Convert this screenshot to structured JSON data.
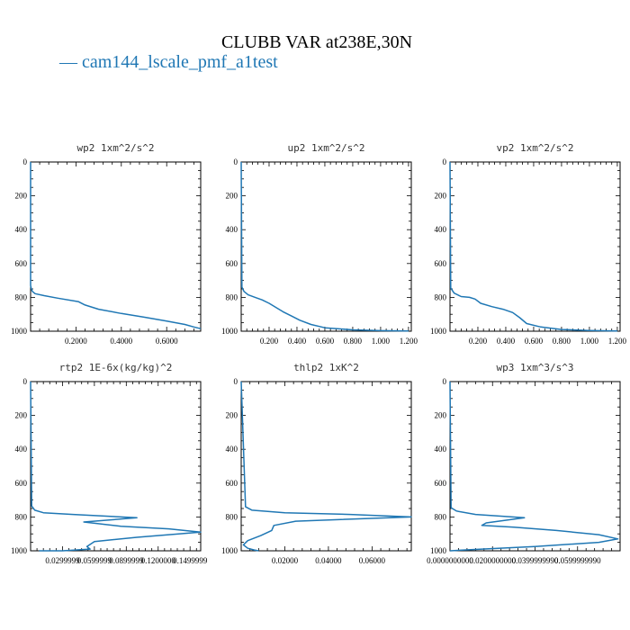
{
  "figure": {
    "title": "CLUBB VAR at238E,30N",
    "legend_label": "cam144_lscale_pmf_a1test",
    "legend_marker": "—",
    "line_color": "#1f77b4"
  },
  "chart_data": [
    {
      "type": "line",
      "title": "wp2  1xm^2/s^2",
      "xlim": [
        0,
        0.75
      ],
      "ylim": [
        1000,
        0
      ],
      "xticks": [
        0.2,
        0.4,
        0.6
      ],
      "xtick_labels": [
        "0.2000",
        "0.4000",
        "0.6000"
      ],
      "yticks": [
        0,
        200,
        400,
        600,
        800,
        1000
      ],
      "ytick_labels": [
        "0",
        "200",
        "400",
        "600",
        "800",
        "1000"
      ],
      "series": [
        {
          "name": "cam144_lscale_pmf_a1test",
          "x": [
            0,
            0,
            0.003,
            0.008,
            0.02,
            0.06,
            0.12,
            0.21,
            0.24,
            0.3,
            0.4,
            0.5,
            0.6,
            0.68,
            0.72,
            0.75
          ],
          "y": [
            0,
            730,
            750,
            765,
            778,
            790,
            805,
            825,
            845,
            870,
            895,
            917,
            940,
            960,
            975,
            985
          ]
        }
      ]
    },
    {
      "type": "line",
      "title": "up2  1xm^2/s^2",
      "xlim": [
        0,
        1.22
      ],
      "ylim": [
        1000,
        0
      ],
      "xticks": [
        0.2,
        0.4,
        0.6,
        0.8,
        1.0,
        1.2
      ],
      "xtick_labels": [
        "0.200",
        "0.400",
        "0.600",
        "0.800",
        "1.000",
        "1.200"
      ],
      "yticks": [
        0,
        200,
        400,
        600,
        800,
        1000
      ],
      "ytick_labels": [
        "0",
        "200",
        "400",
        "600",
        "800",
        "1000"
      ],
      "series": [
        {
          "name": "cam144_lscale_pmf_a1test",
          "x": [
            0,
            0.005,
            0.02,
            0.05,
            0.1,
            0.15,
            0.2,
            0.26,
            0.3,
            0.36,
            0.42,
            0.5,
            0.6,
            0.8,
            1.0,
            1.2
          ],
          "y": [
            0,
            740,
            765,
            785,
            800,
            815,
            835,
            865,
            885,
            910,
            935,
            960,
            980,
            992,
            997,
            999
          ]
        }
      ]
    },
    {
      "type": "line",
      "title": "vp2  1xm^2/s^2",
      "xlim": [
        0,
        1.22
      ],
      "ylim": [
        1000,
        0
      ],
      "xticks": [
        0.2,
        0.4,
        0.6,
        0.8,
        1.0,
        1.2
      ],
      "xtick_labels": [
        "0.200",
        "0.400",
        "0.600",
        "0.800",
        "1.000",
        "1.200"
      ],
      "yticks": [
        0,
        200,
        400,
        600,
        800,
        1000
      ],
      "ytick_labels": [
        "0",
        "200",
        "400",
        "600",
        "800",
        "1000"
      ],
      "series": [
        {
          "name": "cam144_lscale_pmf_a1test",
          "x": [
            0,
            0.005,
            0.03,
            0.08,
            0.14,
            0.18,
            0.22,
            0.3,
            0.38,
            0.45,
            0.5,
            0.55,
            0.65,
            0.8,
            1.0,
            1.2
          ],
          "y": [
            0,
            745,
            775,
            795,
            800,
            810,
            835,
            855,
            870,
            890,
            920,
            955,
            975,
            990,
            996,
            999
          ]
        }
      ]
    },
    {
      "type": "line",
      "title": "rtp2  1E-6x(kg/kg)^2",
      "xlim": [
        0,
        0.16
      ],
      "ylim": [
        1000,
        0
      ],
      "xticks": [
        0.03,
        0.06,
        0.09,
        0.12,
        0.15
      ],
      "xtick_labels": [
        "0.0299999",
        "0.0599999",
        "0.0899999",
        "0.1200000",
        "0.1499999"
      ],
      "yticks": [
        0,
        200,
        400,
        600,
        800,
        1000
      ],
      "ytick_labels": [
        "0",
        "200",
        "400",
        "600",
        "800",
        "1000"
      ],
      "series": [
        {
          "name": "cam144_lscale_pmf_a1test",
          "x": [
            0,
            0.001,
            0.004,
            0.012,
            0.04,
            0.1,
            0.05,
            0.085,
            0.13,
            0.16,
            0.1,
            0.06,
            0.053,
            0.056,
            0.03,
            0.008
          ],
          "y": [
            0,
            735,
            760,
            775,
            785,
            805,
            830,
            855,
            870,
            890,
            920,
            945,
            975,
            990,
            1000,
            1000
          ]
        }
      ]
    },
    {
      "type": "line",
      "title": "thlp2  1xK^2",
      "xlim": [
        0,
        0.078
      ],
      "ylim": [
        1000,
        0
      ],
      "xticks": [
        0.02,
        0.04,
        0.06
      ],
      "xtick_labels": [
        "0.02000",
        "0.04000",
        "0.06000"
      ],
      "yticks": [
        0,
        200,
        400,
        600,
        800,
        1000
      ],
      "ytick_labels": [
        "0",
        "200",
        "400",
        "600",
        "800",
        "1000"
      ],
      "series": [
        {
          "name": "cam144_lscale_pmf_a1test",
          "x": [
            0,
            0.002,
            0.005,
            0.02,
            0.05,
            0.078,
            0.025,
            0.015,
            0.014,
            0.009,
            0.003,
            0.001,
            0.003,
            0.006,
            0.008
          ],
          "y": [
            0,
            740,
            760,
            775,
            785,
            800,
            825,
            850,
            880,
            910,
            940,
            965,
            985,
            995,
            1000
          ]
        }
      ]
    },
    {
      "type": "line",
      "title": "wp3  1xm^3/s^3",
      "xlim": [
        0,
        0.08
      ],
      "ylim": [
        1000,
        0
      ],
      "xticks": [
        0,
        0.02,
        0.04,
        0.06
      ],
      "xtick_labels": [
        "0.0000000000",
        "0.0200000000",
        "0.0399999990",
        "0.0599999990"
      ],
      "yticks": [
        0,
        200,
        400,
        600,
        800,
        1000
      ],
      "ytick_labels": [
        "0",
        "200",
        "400",
        "600",
        "800",
        "1000"
      ],
      "series": [
        {
          "name": "cam144_lscale_pmf_a1test",
          "x": [
            0,
            0.0005,
            0.003,
            0.012,
            0.035,
            0.017,
            0.015,
            0.03,
            0.05,
            0.07,
            0.079,
            0.07,
            0.04,
            0.015,
            0.003,
            0
          ],
          "y": [
            0,
            745,
            765,
            785,
            805,
            835,
            850,
            860,
            880,
            905,
            930,
            950,
            975,
            990,
            998,
            1000
          ]
        }
      ]
    }
  ]
}
